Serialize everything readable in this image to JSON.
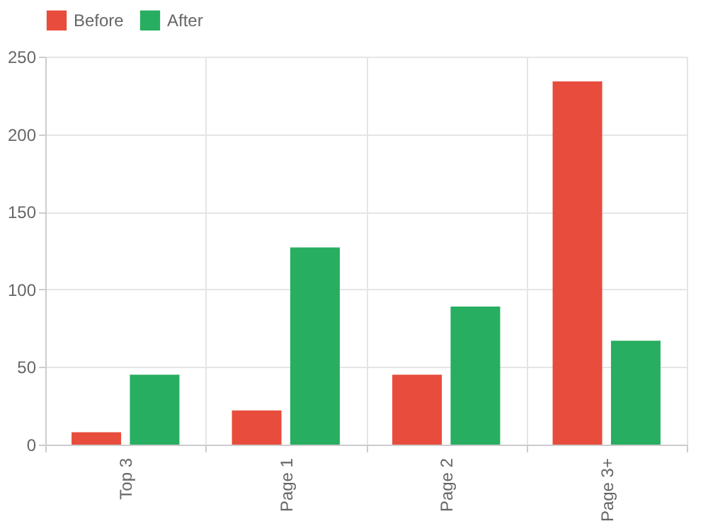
{
  "chart_data": {
    "type": "bar",
    "categories": [
      "Top 3",
      "Page 1",
      "Page 2",
      "Page 3+"
    ],
    "series": [
      {
        "name": "Before",
        "color": "#e74c3c",
        "values": [
          8,
          22,
          45,
          234
        ]
      },
      {
        "name": "After",
        "color": "#27ae60",
        "values": [
          45,
          127,
          89,
          67
        ]
      }
    ],
    "ylim": [
      0,
      250
    ],
    "yticks": [
      0,
      50,
      100,
      150,
      200,
      250
    ],
    "grid": true,
    "legend": "top"
  }
}
